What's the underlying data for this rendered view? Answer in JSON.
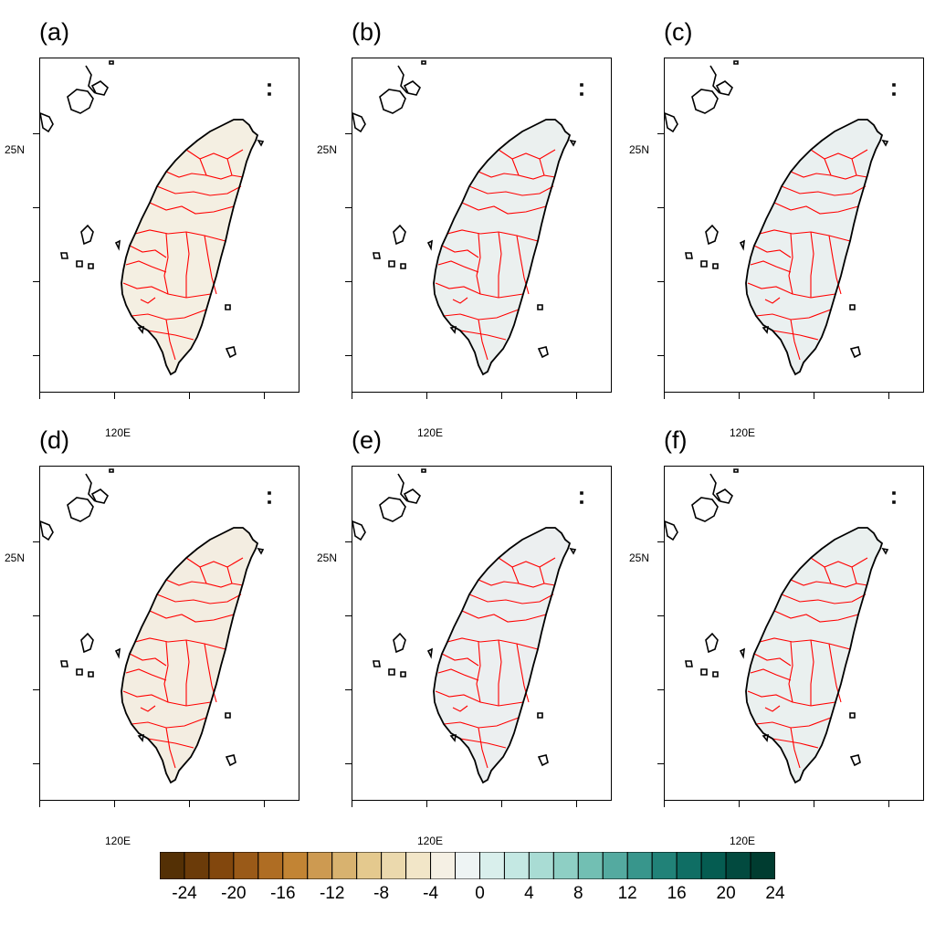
{
  "panels": [
    {
      "label": "(a)",
      "tint": "#f4efe2"
    },
    {
      "label": "(b)",
      "tint": "#ebf0ef"
    },
    {
      "label": "(c)",
      "tint": "#eaf0f0"
    },
    {
      "label": "(d)",
      "tint": "#f3ede1"
    },
    {
      "label": "(e)",
      "tint": "#eceff0"
    },
    {
      "label": "(f)",
      "tint": "#eaf0ef"
    }
  ],
  "axes": {
    "lat_label": "25N",
    "lon_label": "120E"
  },
  "colorbar": {
    "colors": [
      "#543005",
      "#6b3b09",
      "#82470d",
      "#9a5a18",
      "#af6d23",
      "#c28434",
      "#cd9a51",
      "#d8b26f",
      "#e4c98e",
      "#ebd9ad",
      "#f2e6c8",
      "#f5f0e4",
      "#eef4f4",
      "#d9efec",
      "#c4e8e3",
      "#a9dcd4",
      "#8ecfc4",
      "#72bfb3",
      "#54aaa0",
      "#38968c",
      "#218278",
      "#0f6e64",
      "#055c51",
      "#024a3f",
      "#003c30"
    ],
    "labels": [
      "-24",
      "-20",
      "-16",
      "-12",
      "-8",
      "-4",
      "0",
      "4",
      "8",
      "12",
      "16",
      "20",
      "24"
    ]
  }
}
